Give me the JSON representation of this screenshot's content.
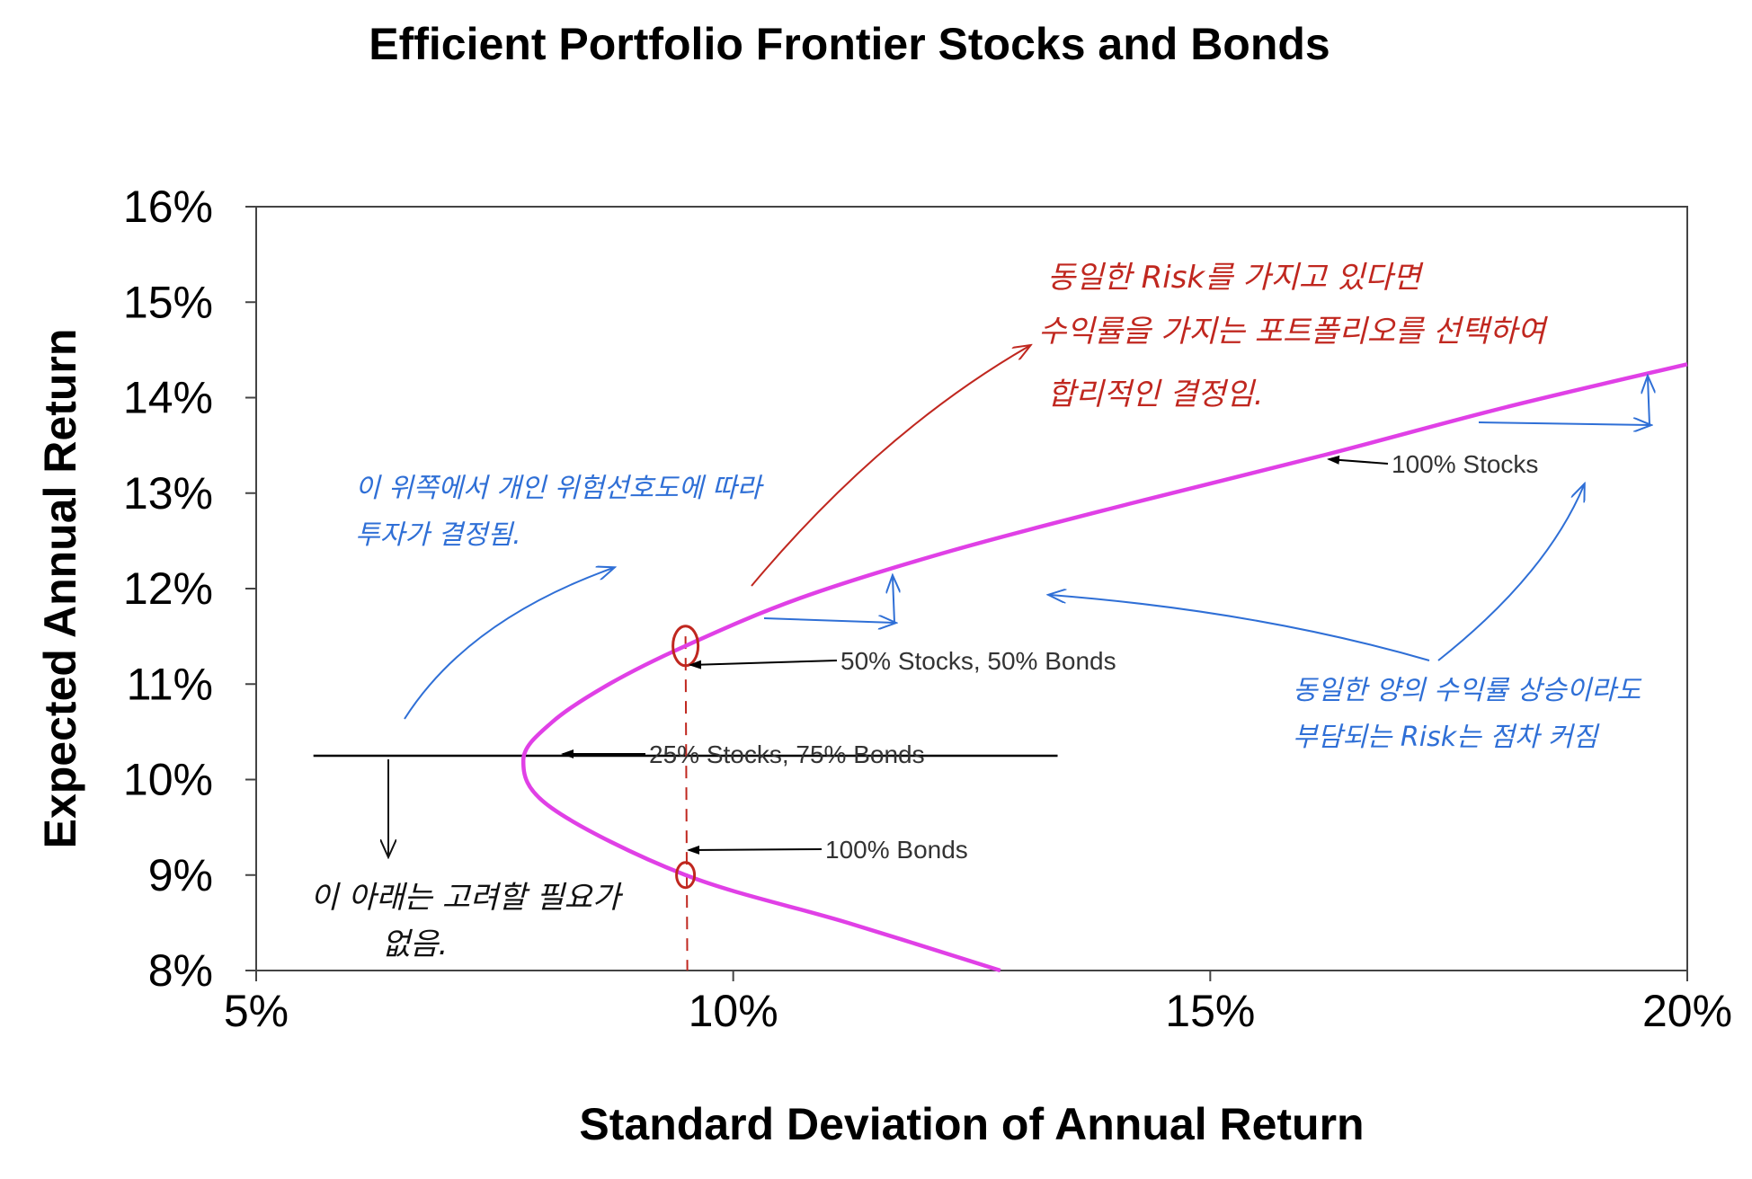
{
  "chart_data": {
    "type": "line",
    "title": "Efficient Portfolio Frontier Stocks and Bonds",
    "xlabel": "Standard Deviation of Annual Return",
    "ylabel": "Expected Annual Return",
    "xlim": [
      5,
      20
    ],
    "ylim": [
      8,
      16
    ],
    "x_ticks": [
      "5%",
      "10%",
      "15%",
      "20%"
    ],
    "y_ticks": [
      "8%",
      "9%",
      "10%",
      "11%",
      "12%",
      "13%",
      "14%",
      "15%",
      "16%"
    ],
    "grid": false,
    "legend": "none",
    "series": [
      {
        "color": "#e040e6",
        "points": [
          {
            "x": 12.8,
            "y": 8.0
          },
          {
            "x": 11.2,
            "y": 8.5
          },
          {
            "x": 9.5,
            "y": 9.0
          },
          {
            "x": 8.1,
            "y": 9.7
          },
          {
            "x": 7.8,
            "y": 10.2
          },
          {
            "x": 8.1,
            "y": 10.6
          },
          {
            "x": 8.7,
            "y": 11.0
          },
          {
            "x": 9.5,
            "y": 11.4
          },
          {
            "x": 10.7,
            "y": 11.9
          },
          {
            "x": 12.3,
            "y": 12.4
          },
          {
            "x": 14.2,
            "y": 12.9
          },
          {
            "x": 16.2,
            "y": 13.4
          },
          {
            "x": 18.1,
            "y": 13.9
          },
          {
            "x": 20.0,
            "y": 14.35
          }
        ]
      }
    ],
    "annotations": [
      {
        "text": "100% Stocks",
        "x": 16.2,
        "y": 13.35
      },
      {
        "text": "50% Stocks, 50% Bonds",
        "x": 9.5,
        "y": 11.2
      },
      {
        "text": "25% Stocks, 75% Bonds",
        "x": 8.3,
        "y": 10.3
      },
      {
        "text": "100% Bonds",
        "x": 9.55,
        "y": 9.3
      }
    ],
    "reference_line": {
      "y": 10.25,
      "x_from": 5.6,
      "x_to": 13.4
    },
    "vertical_dashed": {
      "x": 9.5
    }
  },
  "handwritten": {
    "red_note": [
      "동일한 Risk를 가지고 있다면",
      "수익률을 가지는 포트폴리오를 선택하여",
      "합리적인 결정임."
    ],
    "blue_note_left": [
      "이 위쪽에서 개인 위험선호도에 따라",
      "투자가 결정됨."
    ],
    "blue_note_right": [
      "동일한 양의 수익률 상승이라도",
      "부담되는 Risk는 점차 커짐"
    ],
    "black_note": [
      "이 아래는 고려할 필요가",
      "없음."
    ]
  }
}
